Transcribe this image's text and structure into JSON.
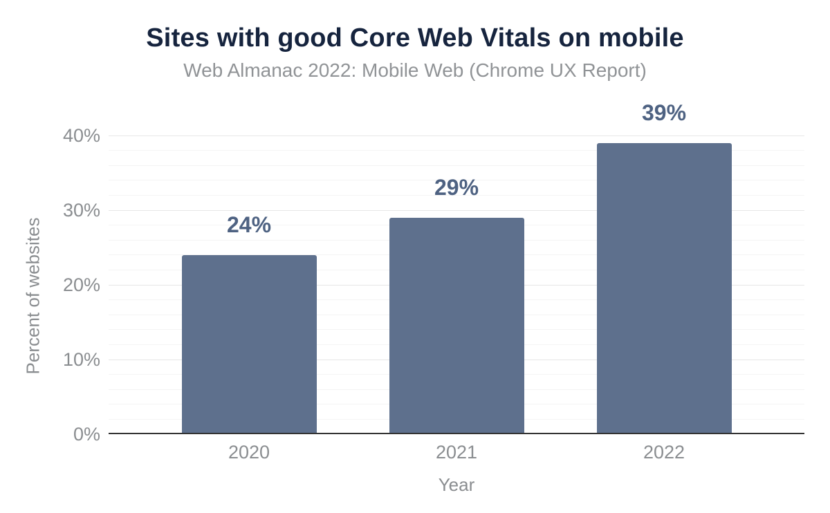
{
  "chart_data": {
    "type": "bar",
    "title": "Sites with good Core Web Vitals on mobile",
    "subtitle": "Web Almanac 2022: Mobile Web (Chrome UX Report)",
    "categories": [
      "2020",
      "2021",
      "2022"
    ],
    "values": [
      24,
      29,
      39
    ],
    "value_labels": [
      "24%",
      "29%",
      "39%"
    ],
    "xlabel": "Year",
    "ylabel": "Percent of websites",
    "ylim": [
      0,
      40
    ],
    "y_major_step": 10,
    "y_minor_step": 2,
    "y_tick_labels": [
      "0%",
      "10%",
      "20%",
      "30%",
      "40%"
    ],
    "grid": true,
    "legend": false
  },
  "colors": {
    "background": "#ffffff",
    "title": "#16243e",
    "subtitle": "#909396",
    "bar": "#5e708d",
    "value_label": "#4e6282",
    "tick_label": "#8a8d90",
    "axis_title": "#8a8d90",
    "grid_major": "#e7e7e7",
    "grid_minor": "#f4f4f4",
    "axis_line": "#333333"
  }
}
